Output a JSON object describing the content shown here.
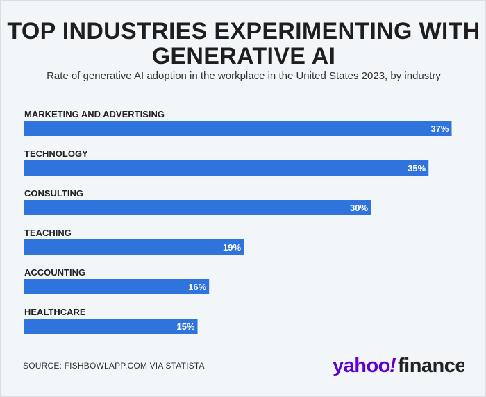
{
  "colors": {
    "bar": "#2f73dc",
    "background": "#f3f6f9",
    "brand": "#5f01d1"
  },
  "header": {
    "title_line1": "TOP INDUSTRIES EXPERIMENTING WITH",
    "title_line2": "GENERATIVE AI",
    "subtitle": "Rate of generative AI adoption in the workplace in the United States 2023, by industry"
  },
  "footer": {
    "source": "SOURCE: FISHBOWLAPP.COM VIA STATISTA",
    "logo": "yahoo!finance"
  },
  "chart_data": {
    "type": "bar",
    "orientation": "horizontal",
    "title": "TOP INDUSTRIES EXPERIMENTING WITH GENERATIVE AI",
    "subtitle": "Rate of generative AI adoption in the workplace in the United States 2023, by industry",
    "categories": [
      "MARKETING AND ADVERTISING",
      "TECHNOLOGY",
      "CONSULTING",
      "TEACHING",
      "ACCOUNTING",
      "HEALTHCARE"
    ],
    "values": [
      37,
      35,
      30,
      19,
      16,
      15
    ],
    "labels": [
      "37%",
      "35%",
      "30%",
      "19%",
      "16%",
      "15%"
    ],
    "unit": "%",
    "xlim": [
      0,
      40
    ],
    "xlabel": "",
    "ylabel": "",
    "grid": false
  }
}
